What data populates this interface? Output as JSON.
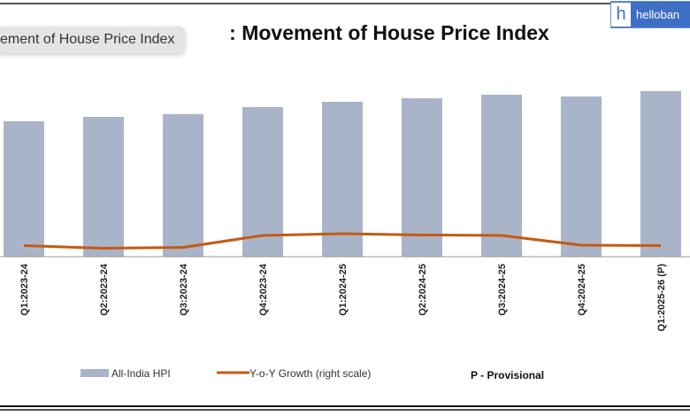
{
  "tooltip": "ement of House Price Index",
  "badge": {
    "letter": "h",
    "text": "helloban"
  },
  "chart_data": {
    "type": "bar",
    "title": "Chart 1: Movement of House Price Index",
    "title_visible": ": Movement of House Price Index",
    "categories": [
      "Q1:2023-24",
      "Q2:2023-24",
      "Q3:2023-24",
      "Q4:2023-24",
      "Q1:2024-25",
      "Q2:2024-25",
      "Q3:2024-25",
      "Q4:2024-25",
      "Q1:2025-26 (P)"
    ],
    "series": [
      {
        "name": "All-India HPI",
        "type": "bar",
        "color": "#a9b4c9",
        "values": [
          153,
          158,
          161,
          169,
          175,
          179,
          183,
          181,
          187
        ]
      },
      {
        "name": "Y-o-Y Growth (right scale)",
        "type": "line",
        "color": "#c55a11",
        "values": [
          2.5,
          1.9,
          2.1,
          4.8,
          5.2,
          4.9,
          4.8,
          2.6,
          2.5
        ]
      }
    ],
    "ylim": [
      0,
      200
    ],
    "y2lim": [
      0,
      20
    ],
    "note": "P - Provisional",
    "legend": "bottom"
  }
}
